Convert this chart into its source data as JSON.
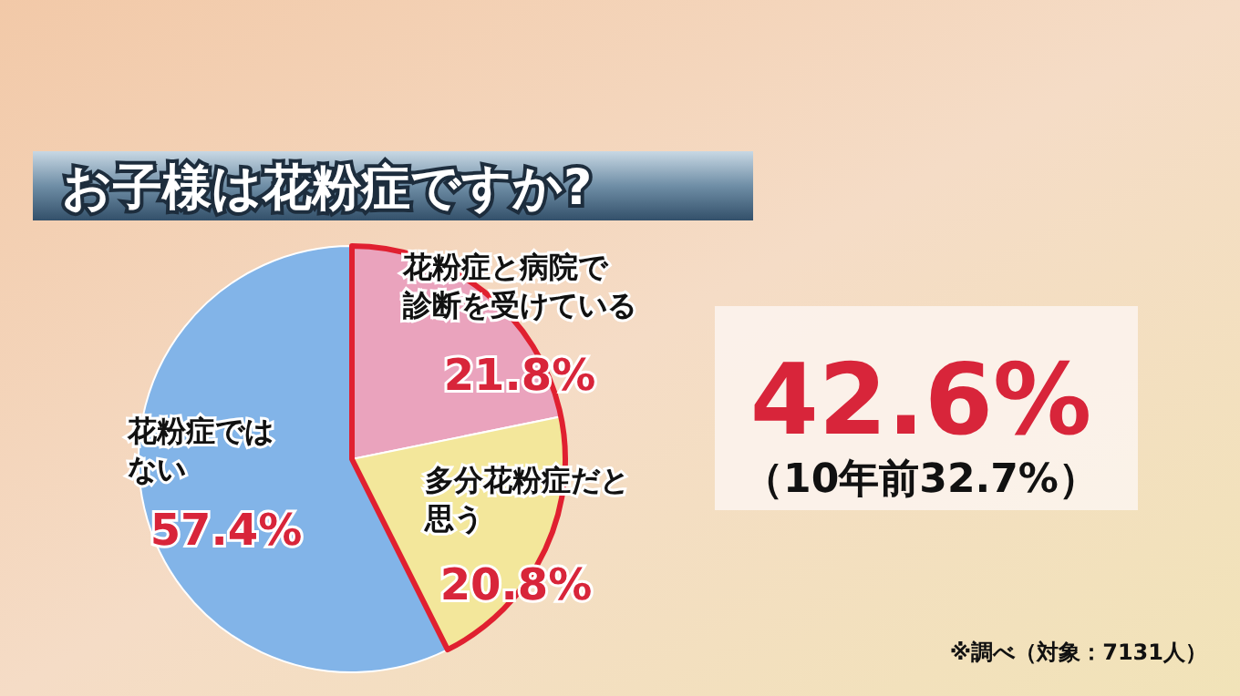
{
  "chart_data": {
    "type": "pie",
    "title": "お子様は花粉症ですか?",
    "categories": [
      "花粉症と病院で診断を受けている",
      "多分花粉症だと思う",
      "花粉症ではない"
    ],
    "values": [
      21.8,
      20.8,
      57.4
    ],
    "colors": [
      "#eaa3bd",
      "#f3e79b",
      "#82b4e8"
    ],
    "value_labels": [
      "21.8%",
      "20.8%",
      "57.4%"
    ],
    "annotations": [
      "42.6%",
      "（10年前32.7%）",
      "※調べ（対象：7131人）"
    ]
  }
}
